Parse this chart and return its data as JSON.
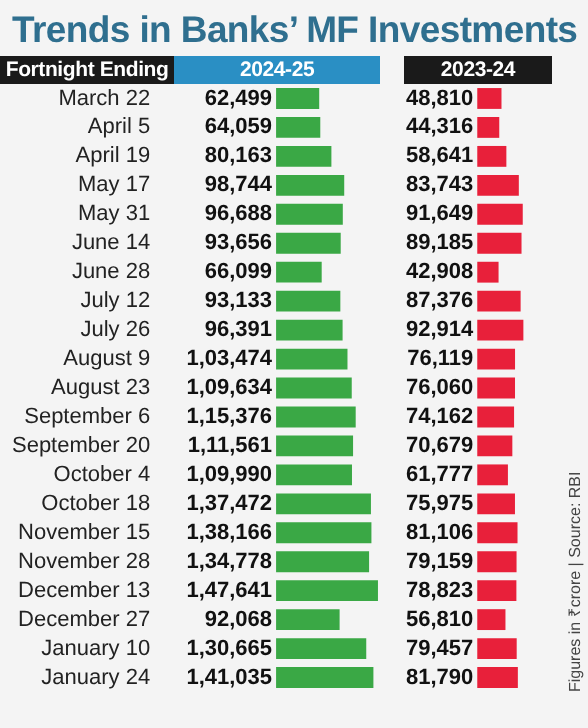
{
  "chart_data": [
    {
      "type": "bar",
      "orientation": "horizontal",
      "title": "Trends in Banks’ MF Investments",
      "ylabel": "Fortnight Ending",
      "categories": [
        "March 22",
        "April 5",
        "April 19",
        "May 17",
        "May 31",
        "June 14",
        "June 28",
        "July 12",
        "July 26",
        "August 9",
        "August 23",
        "September 6",
        "September 20",
        "October 4",
        "October 18",
        "November 15",
        "November 28",
        "December 13",
        "December 27",
        "January 10",
        "January 24"
      ],
      "series": [
        {
          "name": "2024-25",
          "color": "#3aa845",
          "values": [
            62499,
            64059,
            80163,
            98744,
            96688,
            93656,
            66099,
            93133,
            96391,
            103474,
            109634,
            115376,
            111561,
            109990,
            137472,
            138166,
            134778,
            147641,
            92068,
            130665,
            141035
          ],
          "value_labels": [
            "62,499",
            "64,059",
            "80,163",
            "98,744",
            "96,688",
            "93,656",
            "66,099",
            "93,133",
            "96,391",
            "1,03,474",
            "1,09,634",
            "1,15,376",
            "1,11,561",
            "1,09,990",
            "1,37,472",
            "1,38,166",
            "1,34,778",
            "1,47,641",
            "92,068",
            "1,30,665",
            "1,41,035"
          ]
        }
      ],
      "legend": false,
      "grid": false,
      "tick_labels": "y"
    },
    {
      "type": "bar",
      "orientation": "horizontal",
      "categories": [
        null,
        null,
        null,
        null,
        null,
        null,
        null,
        null,
        null,
        null,
        null,
        null,
        null,
        null,
        null,
        null,
        null,
        null,
        null,
        null,
        null
      ],
      "series": [
        {
          "name": "2023-24",
          "color": "#e8203a",
          "values": [
            48810,
            44316,
            58641,
            83743,
            91649,
            89185,
            42908,
            87376,
            92914,
            76119,
            76060,
            74162,
            70679,
            61777,
            75975,
            81106,
            79159,
            78823,
            56810,
            79457,
            81790
          ],
          "value_labels": [
            "48,810",
            "44,316",
            "58,641",
            "83,743",
            "91,649",
            "89,185",
            "42,908",
            "87,376",
            "92,914",
            "76,119",
            "76,060",
            "74,162",
            "70,679",
            "61,777",
            "75,975",
            "81,106",
            "79,159",
            "78,823",
            "56,810",
            "79,457",
            "81,790"
          ]
        }
      ],
      "annotations": [
        "Figures in ₹crore | Source: RBI"
      ],
      "legend": false,
      "grid": false,
      "tick_labels": false
    }
  ]
}
